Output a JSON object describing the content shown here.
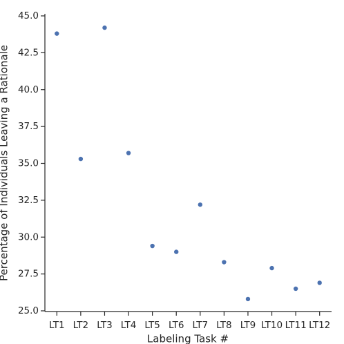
{
  "chart_data": {
    "type": "scatter",
    "x_label": "Labeling Task #",
    "y_label": "Percentage of Individuals Leaving a Rationale",
    "categories": [
      "LT1",
      "LT2",
      "LT3",
      "LT4",
      "LT5",
      "LT6",
      "LT7",
      "LT8",
      "LT9",
      "LT10",
      "LT11",
      "LT12"
    ],
    "values": [
      43.8,
      35.3,
      44.2,
      35.7,
      29.4,
      29.0,
      32.2,
      28.3,
      25.8,
      27.9,
      26.5,
      26.9
    ],
    "color": "#4c72b0",
    "ylim": [
      25,
      45
    ],
    "yticks": [
      {
        "value": 25,
        "label": "25.0"
      },
      {
        "value": 27.5,
        "label": "27.5"
      },
      {
        "value": 30,
        "label": "30.0"
      },
      {
        "value": 32.5,
        "label": "32.5"
      },
      {
        "value": 35,
        "label": "35.0"
      },
      {
        "value": 37.5,
        "label": "37.5"
      },
      {
        "value": 40,
        "label": "40.0"
      },
      {
        "value": 42.5,
        "label": "42.5"
      },
      {
        "value": 45,
        "label": "45.0"
      }
    ],
    "grid": false
  }
}
